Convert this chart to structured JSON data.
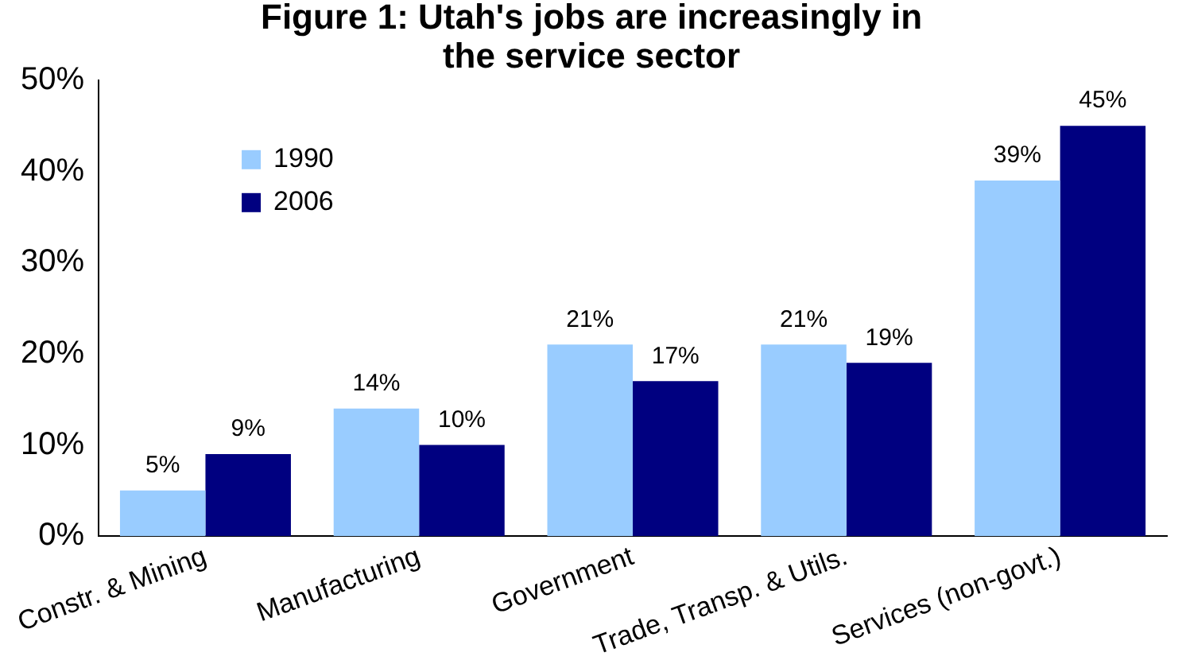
{
  "chart_data": {
    "type": "bar",
    "title": "Figure 1: Utah's jobs are increasingly in the service sector",
    "categories": [
      "Constr. & Mining",
      "Manufacturing",
      "Government",
      "Trade, Transp. & Utils.",
      "Services (non-govt.)"
    ],
    "series": [
      {
        "name": "1990",
        "color": "#99ccff",
        "values": [
          5,
          14,
          21,
          21,
          39
        ],
        "value_labels": [
          "5%",
          "14%",
          "21%",
          "21%",
          "39%"
        ]
      },
      {
        "name": "2006",
        "color": "#000080",
        "values": [
          9,
          10,
          17,
          19,
          45
        ],
        "value_labels": [
          "9%",
          "10%",
          "17%",
          "19%",
          "45%"
        ]
      }
    ],
    "ylim": [
      0,
      50
    ],
    "yticks": [
      {
        "value": 0,
        "label": "0%"
      },
      {
        "value": 10,
        "label": "10%"
      },
      {
        "value": 20,
        "label": "20%"
      },
      {
        "value": 30,
        "label": "30%"
      },
      {
        "value": 40,
        "label": "40%"
      },
      {
        "value": 50,
        "label": "50%"
      }
    ],
    "legend": "top left",
    "grid": false
  }
}
